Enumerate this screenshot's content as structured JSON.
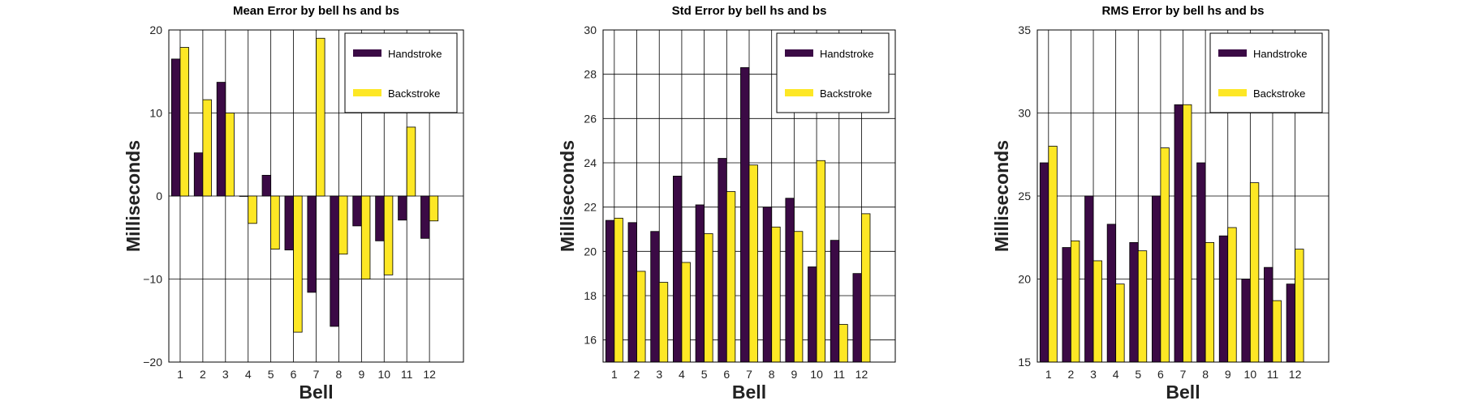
{
  "chart_data": [
    {
      "type": "bar",
      "title": "Mean Error by bell hs and bs",
      "xlabel": "Bell",
      "ylabel": "Milliseconds",
      "categories": [
        "1",
        "2",
        "3",
        "4",
        "5",
        "6",
        "7",
        "8",
        "9",
        "10",
        "11",
        "12"
      ],
      "xlim": [
        0.5,
        13.5
      ],
      "ylim": [
        -20,
        20
      ],
      "yticks": [
        -20,
        -10,
        0,
        10,
        20
      ],
      "ytick_labels": [
        "−20",
        "−10",
        "0",
        "10",
        "20"
      ],
      "grid": true,
      "legend_position": "top-right",
      "series": [
        {
          "name": "Handstroke",
          "color": "#3b0a45",
          "values": [
            16.5,
            5.2,
            13.7,
            0,
            2.5,
            -6.5,
            -11.6,
            -15.7,
            -3.6,
            -5.4,
            -2.9,
            -5.1
          ]
        },
        {
          "name": "Backstroke",
          "color": "#fde725",
          "values": [
            17.9,
            11.6,
            10.0,
            -3.3,
            -6.4,
            -16.4,
            19.0,
            -7.0,
            -10.0,
            -9.5,
            8.3,
            -3.0
          ]
        }
      ]
    },
    {
      "type": "bar",
      "title": "Std Error by bell hs and bs",
      "xlabel": "Bell",
      "ylabel": "Milliseconds",
      "categories": [
        "1",
        "2",
        "3",
        "4",
        "5",
        "6",
        "7",
        "8",
        "9",
        "10",
        "11",
        "12"
      ],
      "xlim": [
        0.5,
        13.5
      ],
      "ylim": [
        15,
        30
      ],
      "yticks": [
        16,
        18,
        20,
        22,
        24,
        26,
        28,
        30
      ],
      "ytick_labels": [
        "16",
        "18",
        "20",
        "22",
        "24",
        "26",
        "28",
        "30"
      ],
      "grid": true,
      "legend_position": "top-right",
      "series": [
        {
          "name": "Handstroke",
          "color": "#3b0a45",
          "values": [
            21.4,
            21.3,
            20.9,
            23.4,
            22.1,
            24.2,
            28.3,
            22.0,
            22.4,
            19.3,
            20.5,
            19.0
          ]
        },
        {
          "name": "Backstroke",
          "color": "#fde725",
          "values": [
            21.5,
            19.1,
            18.6,
            19.5,
            20.8,
            22.7,
            23.9,
            21.1,
            20.9,
            24.1,
            16.7,
            21.7
          ]
        }
      ]
    },
    {
      "type": "bar",
      "title": "RMS Error by bell hs and bs",
      "xlabel": "Bell",
      "ylabel": "Milliseconds",
      "categories": [
        "1",
        "2",
        "3",
        "4",
        "5",
        "6",
        "7",
        "8",
        "9",
        "10",
        "11",
        "12"
      ],
      "xlim": [
        0.5,
        13.5
      ],
      "ylim": [
        15,
        35
      ],
      "yticks": [
        15,
        20,
        25,
        30,
        35
      ],
      "ytick_labels": [
        "15",
        "20",
        "25",
        "30",
        "35"
      ],
      "grid": true,
      "legend_position": "top-right",
      "series": [
        {
          "name": "Handstroke",
          "color": "#3b0a45",
          "values": [
            27.0,
            21.9,
            25.0,
            23.3,
            22.2,
            25.0,
            30.5,
            27.0,
            22.6,
            20.0,
            20.7,
            19.7
          ]
        },
        {
          "name": "Backstroke",
          "color": "#fde725",
          "values": [
            28.0,
            22.3,
            21.1,
            19.7,
            21.7,
            27.9,
            30.5,
            22.2,
            23.1,
            25.8,
            18.7,
            21.8
          ]
        }
      ]
    }
  ]
}
